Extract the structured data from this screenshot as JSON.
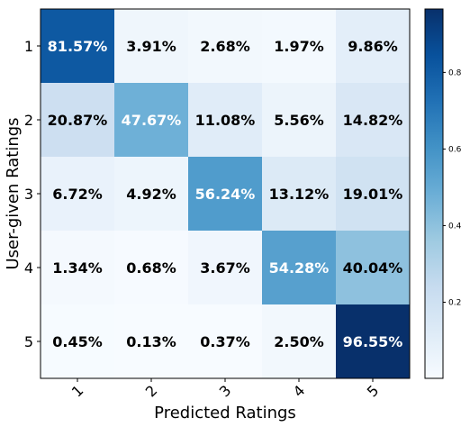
{
  "chart_data": {
    "type": "heatmap",
    "xlabel": "Predicted Ratings",
    "ylabel": "User-given Ratings",
    "x_categories": [
      "1",
      "2",
      "3",
      "4",
      "5"
    ],
    "y_categories": [
      "1",
      "2",
      "3",
      "4",
      "5"
    ],
    "values": [
      [
        0.8157,
        0.0391,
        0.0268,
        0.0197,
        0.0986
      ],
      [
        0.2087,
        0.4767,
        0.1108,
        0.0556,
        0.1482
      ],
      [
        0.0672,
        0.0492,
        0.5624,
        0.1312,
        0.1901
      ],
      [
        0.0134,
        0.0068,
        0.0367,
        0.5428,
        0.4004
      ],
      [
        0.0045,
        0.0013,
        0.0037,
        0.025,
        0.9655
      ]
    ],
    "cell_labels": [
      [
        "81.57%",
        "3.91%",
        "2.68%",
        "1.97%",
        "9.86%"
      ],
      [
        "20.87%",
        "47.67%",
        "11.08%",
        "5.56%",
        "14.82%"
      ],
      [
        "6.72%",
        "4.92%",
        "56.24%",
        "13.12%",
        "19.01%"
      ],
      [
        "1.34%",
        "0.68%",
        "3.67%",
        "54.28%",
        "40.04%"
      ],
      [
        "0.45%",
        "0.13%",
        "0.37%",
        "2.50%",
        "96.55%"
      ]
    ],
    "colormap": "Blues",
    "color_range": [
      0.0013,
      0.9655
    ],
    "colorbar_ticks": [
      0.2,
      0.4,
      0.6,
      0.8
    ],
    "colorbar_tick_labels": [
      "0.2",
      "0.4",
      "0.6",
      "0.8"
    ],
    "x_tick_rotation_deg": 45
  }
}
